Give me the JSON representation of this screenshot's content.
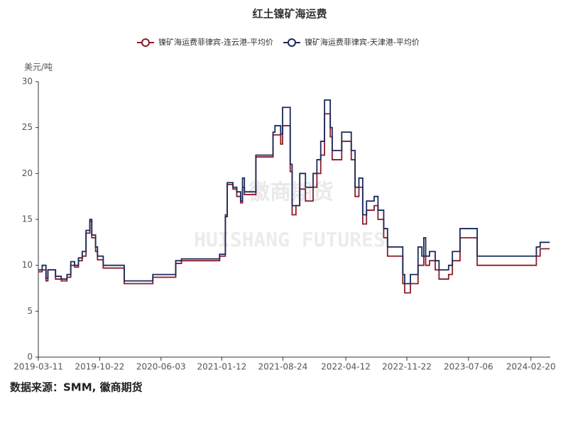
{
  "chart_data": {
    "type": "step-line",
    "title": "红土镍矿海运费",
    "y_label": "美元/吨",
    "source": "数据来源：SMM, 徽商期货",
    "watermark": [
      "徽商期货",
      "HUISHANG FUTURES"
    ],
    "xlim": [
      "2019-03-11",
      "2024-05-01"
    ],
    "xticks": [
      "2019-03-11",
      "2019-10-22",
      "2020-06-03",
      "2021-01-12",
      "2021-08-24",
      "2022-04-12",
      "2022-11-22",
      "2023-07-06",
      "2024-02-20"
    ],
    "ylim": [
      0,
      30
    ],
    "yticks": [
      0,
      5,
      10,
      15,
      20,
      25,
      30
    ],
    "legend_position": "top",
    "x": [
      "2019-03-11",
      "2019-03-25",
      "2019-04-08",
      "2019-04-15",
      "2019-05-13",
      "2019-06-03",
      "2019-06-24",
      "2019-07-08",
      "2019-07-22",
      "2019-08-05",
      "2019-08-19",
      "2019-09-02",
      "2019-09-16",
      "2019-09-23",
      "2019-10-07",
      "2019-10-14",
      "2019-11-04",
      "2020-01-20",
      "2020-05-04",
      "2020-07-27",
      "2020-08-17",
      "2021-01-04",
      "2021-01-25",
      "2021-02-01",
      "2021-02-22",
      "2021-03-08",
      "2021-03-22",
      "2021-03-29",
      "2021-04-05",
      "2021-05-17",
      "2021-07-19",
      "2021-07-26",
      "2021-08-16",
      "2021-08-23",
      "2021-09-20",
      "2021-09-27",
      "2021-10-11",
      "2021-10-25",
      "2021-11-15",
      "2021-12-13",
      "2021-12-27",
      "2022-01-10",
      "2022-01-24",
      "2022-02-14",
      "2022-02-21",
      "2022-03-28",
      "2022-05-02",
      "2022-05-16",
      "2022-05-30",
      "2022-06-13",
      "2022-06-27",
      "2022-07-25",
      "2022-08-08",
      "2022-08-29",
      "2022-09-12",
      "2022-11-07",
      "2022-11-14",
      "2022-12-05",
      "2023-01-02",
      "2023-01-16",
      "2023-01-23",
      "2023-01-30",
      "2023-02-13",
      "2023-03-06",
      "2023-03-20",
      "2023-04-24",
      "2023-05-08",
      "2023-06-05",
      "2023-08-07",
      "2024-03-11",
      "2024-03-25",
      "2024-04-29"
    ],
    "series": [
      {
        "name": "镍矿海运费菲律宾-连云港-平均价",
        "color": "#8b1c2c",
        "values": [
          9.3,
          9.5,
          8.3,
          9.5,
          8.5,
          8.3,
          8.7,
          10,
          9.8,
          10.5,
          11,
          13.5,
          14.8,
          13,
          11.5,
          10.6,
          9.7,
          8.0,
          8.7,
          10.2,
          10.5,
          11,
          15.5,
          18.8,
          18.3,
          17.5,
          16.8,
          18.5,
          17.7,
          21.8,
          24.2,
          24.2,
          23.2,
          25.2,
          20.2,
          15.5,
          16.5,
          18.3,
          17,
          18.5,
          20,
          22,
          26.5,
          24,
          21.5,
          23.5,
          21.5,
          17.5,
          18.5,
          14.5,
          16,
          16.5,
          15,
          13,
          11,
          8,
          7,
          8,
          10,
          10,
          11,
          10,
          10.5,
          9.5,
          8.5,
          9,
          10.5,
          13,
          10,
          11,
          11.8,
          11.8
        ]
      },
      {
        "name": "镍矿海运费菲律宾-天津港-平均价",
        "color": "#1a2a5a",
        "values": [
          9.5,
          10,
          8.6,
          9.5,
          8.8,
          8.5,
          9,
          10.4,
          10,
          10.8,
          11.5,
          13.8,
          15,
          13.3,
          12,
          11,
          10,
          8.3,
          9,
          10.5,
          10.7,
          11.2,
          15.3,
          19,
          18.5,
          18,
          17,
          19.5,
          18,
          22,
          24.5,
          25.2,
          24.3,
          27.2,
          21,
          16.5,
          16.5,
          20,
          18.5,
          20,
          21.5,
          23.5,
          28,
          25,
          22.5,
          24.5,
          22.5,
          18.5,
          19.5,
          15.5,
          17,
          17.5,
          16,
          14,
          12,
          9,
          8,
          9,
          12,
          11,
          13,
          11,
          11.5,
          10.5,
          9.5,
          10,
          11.5,
          14,
          11,
          12,
          12.5,
          12.5
        ]
      }
    ]
  }
}
